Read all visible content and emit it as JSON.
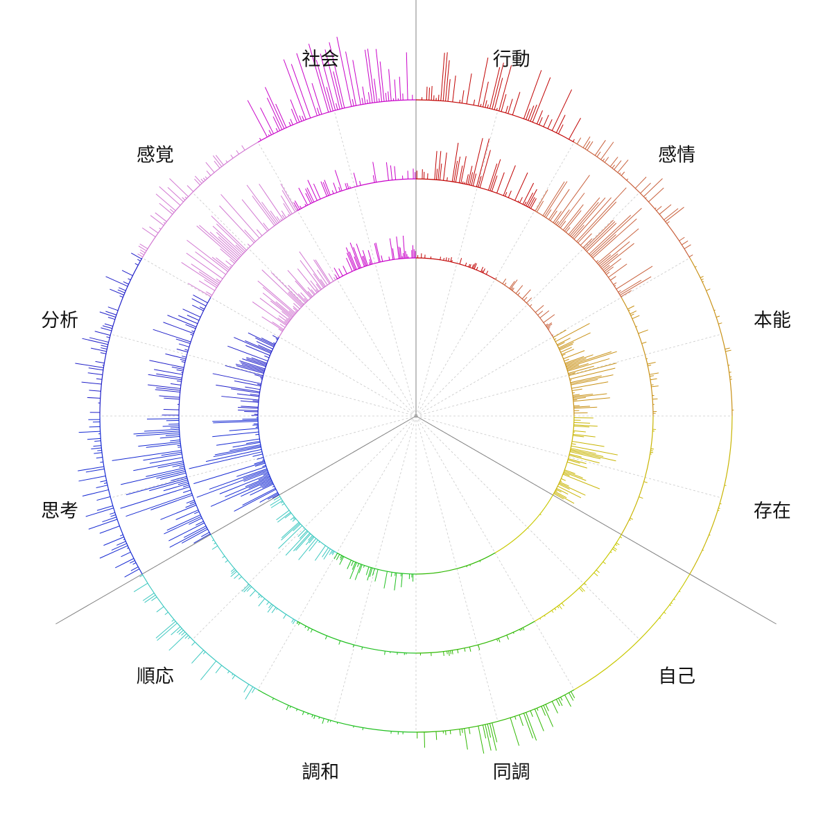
{
  "chart_data": {
    "type": "radial-bar",
    "title": "",
    "rings": 3,
    "segments": [
      {
        "label": "行動",
        "color": "#c00000"
      },
      {
        "label": "感情",
        "color": "#c8603c"
      },
      {
        "label": "本能",
        "color": "#c89014"
      },
      {
        "label": "存在",
        "color": "#c8b400"
      },
      {
        "label": "自己",
        "color": "#c8c800"
      },
      {
        "label": "同調",
        "color": "#2eb800"
      },
      {
        "label": "調和",
        "color": "#1ebf1e"
      },
      {
        "label": "順応",
        "color": "#3cc8c0"
      },
      {
        "label": "思考",
        "color": "#1428d2"
      },
      {
        "label": "分析",
        "color": "#1e1ec8"
      },
      {
        "label": "感覚",
        "color": "#d278d2"
      },
      {
        "label": "社会",
        "color": "#c800c8"
      }
    ],
    "activity": [
      [
        0.7,
        0.55,
        0.1
      ],
      [
        0.35,
        0.95,
        0.2
      ],
      [
        0.06,
        0.12,
        0.65
      ],
      [
        0.02,
        0.05,
        0.55
      ],
      [
        0.03,
        0.08,
        0.02
      ],
      [
        0.35,
        0.06,
        0.02
      ],
      [
        0.08,
        0.06,
        0.22
      ],
      [
        0.3,
        0.12,
        0.4
      ],
      [
        0.4,
        0.85,
        0.85
      ],
      [
        0.35,
        0.45,
        0.55
      ],
      [
        0.3,
        0.75,
        0.65
      ],
      [
        0.85,
        0.3,
        0.35
      ]
    ],
    "grid": "dashed-radial"
  }
}
